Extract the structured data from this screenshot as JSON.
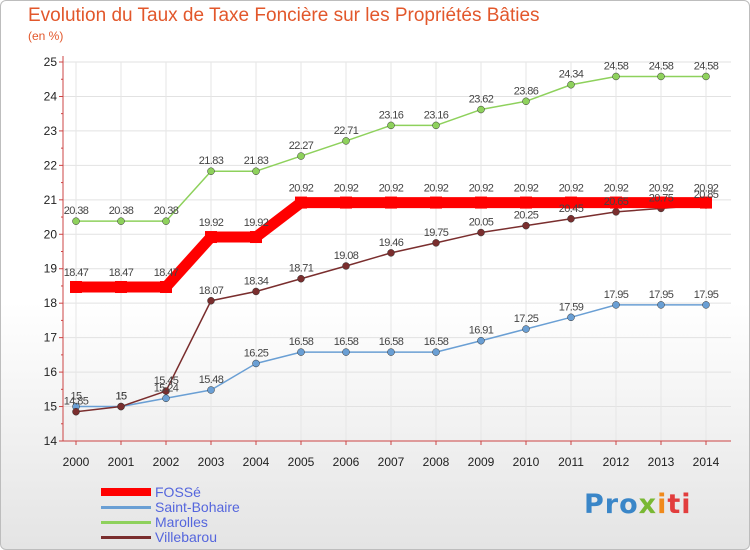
{
  "title": "Evolution du Taux de Taxe Foncière sur les Propriétés Bâties",
  "unit_label": "(en %)",
  "brand": {
    "p1": "Pro",
    "p2": "x",
    "p3": "i",
    "p4": "ti"
  },
  "chart_data": {
    "type": "line",
    "title": "Evolution du Taux de Taxe Foncière sur les Propriétés Bâties",
    "ylabel": "(en %)",
    "xlabel": "",
    "ylim": [
      14,
      25
    ],
    "yticks": [
      14,
      15,
      16,
      17,
      18,
      19,
      20,
      21,
      22,
      23,
      24,
      25
    ],
    "categories": [
      "2000",
      "2001",
      "2002",
      "2003",
      "2004",
      "2005",
      "2006",
      "2007",
      "2008",
      "2009",
      "2010",
      "2011",
      "2012",
      "2013",
      "2014"
    ],
    "series": [
      {
        "name": "FOSSé",
        "color": "#ff0000",
        "values": [
          18.47,
          18.47,
          18.47,
          19.92,
          19.92,
          20.92,
          20.92,
          20.92,
          20.92,
          20.92,
          20.92,
          20.92,
          20.92,
          20.92,
          20.92
        ],
        "labels": [
          "18.47",
          "18.47",
          "18.47",
          "19.92",
          "19.92",
          "20.92",
          "20.92",
          "20.92",
          "20.92",
          "20.92",
          "20.92",
          "20.92",
          "20.92",
          "20.92",
          "20.92"
        ]
      },
      {
        "name": "Saint-Bohaire",
        "color": "#6a9fd4",
        "values": [
          15,
          15,
          15.24,
          15.48,
          16.25,
          16.58,
          16.58,
          16.58,
          16.58,
          16.91,
          17.25,
          17.59,
          17.95,
          17.95,
          17.95
        ],
        "labels": [
          "15",
          "15",
          "15.24",
          "15.48",
          "16.25",
          "16.58",
          "16.58",
          "16.58",
          "16.58",
          "16.91",
          "17.25",
          "17.59",
          "17.95",
          "17.95",
          "17.95"
        ]
      },
      {
        "name": "Marolles",
        "color": "#8ed15c",
        "values": [
          20.38,
          20.38,
          20.38,
          21.83,
          21.83,
          22.27,
          22.71,
          23.16,
          23.16,
          23.62,
          23.86,
          24.34,
          24.58,
          24.58,
          24.58
        ],
        "labels": [
          "20.38",
          "20.38",
          "20.38",
          "21.83",
          "21.83",
          "22.27",
          "22.71",
          "23.16",
          "23.16",
          "23.62",
          "23.86",
          "24.34",
          "24.58",
          "24.58",
          "24.58"
        ]
      },
      {
        "name": "Villebarou",
        "color": "#7a2e2e",
        "values": [
          14.85,
          15,
          15.45,
          18.07,
          18.34,
          18.71,
          19.08,
          19.46,
          19.75,
          20.05,
          20.25,
          20.45,
          20.65,
          20.75,
          20.85
        ],
        "labels": [
          "14.85",
          "15",
          "15.45",
          "18.07",
          "18.34",
          "18.71",
          "19.08",
          "19.46",
          "19.75",
          "20.05",
          "20.25",
          "20.45",
          "20.65",
          "20.75",
          "20.85"
        ]
      }
    ]
  }
}
